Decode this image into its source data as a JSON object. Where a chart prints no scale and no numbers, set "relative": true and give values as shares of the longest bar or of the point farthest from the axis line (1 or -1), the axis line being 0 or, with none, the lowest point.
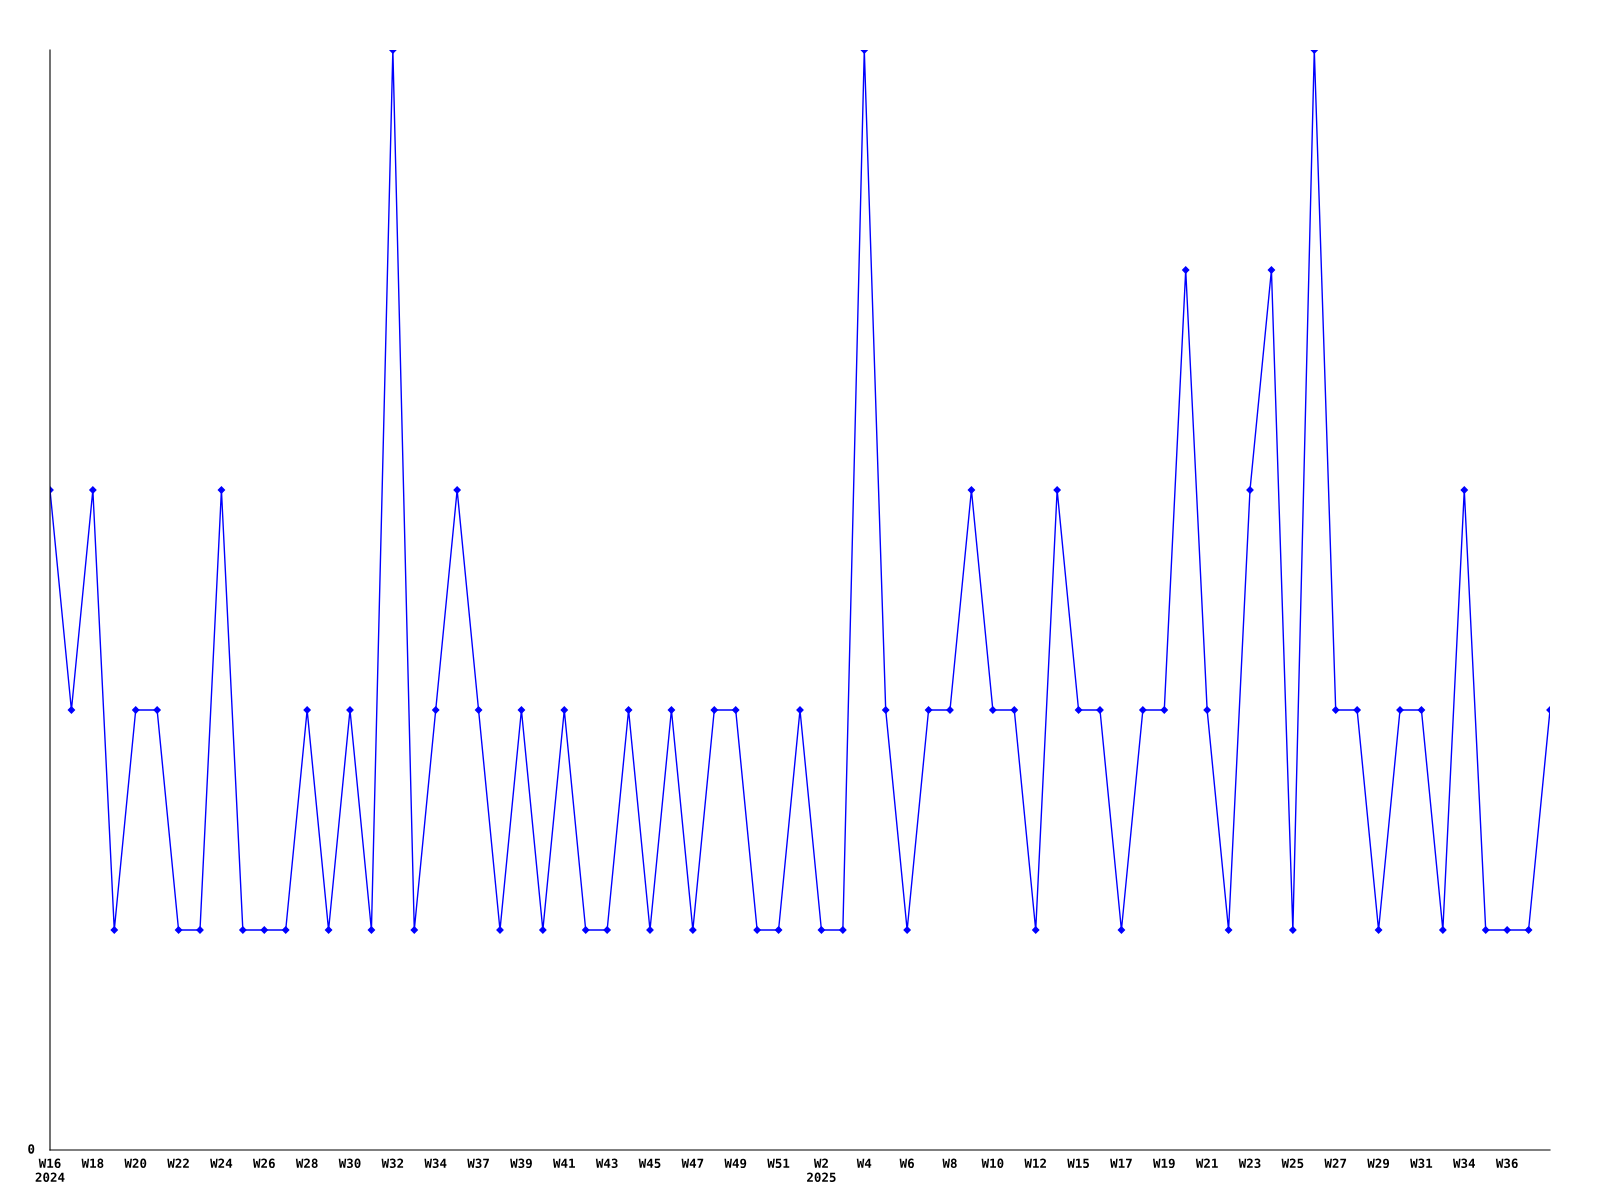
{
  "chart_data": {
    "type": "line",
    "relative": true,
    "marker": "diamond",
    "line_style": "solid",
    "grid": false,
    "legend": false,
    "categories": [
      "W16\n2024",
      null,
      "W18",
      null,
      "W20",
      null,
      "W22",
      null,
      "W24",
      null,
      "W26",
      null,
      "W28",
      null,
      "W30",
      null,
      "W32",
      null,
      "W34",
      null,
      "W37",
      null,
      "W39",
      null,
      "W41",
      null,
      "W43",
      null,
      "W45",
      null,
      "W47",
      null,
      "W49",
      null,
      "W51",
      null,
      "W2\n2025",
      null,
      "W4",
      null,
      "W6",
      null,
      "W8",
      null,
      "W10",
      null,
      "W12",
      null,
      "W15",
      null,
      "W17",
      null,
      "W19",
      null,
      "W21",
      null,
      "W23",
      null,
      "W25",
      null,
      "W27",
      null,
      "W29",
      null,
      "W31",
      null,
      "W34",
      null,
      "W36",
      null,
      null
    ],
    "series": [
      {
        "color": "#0000ff",
        "values": [
          0.6,
          0.4,
          0.6,
          0.2,
          0.4,
          0.4,
          0.2,
          0.2,
          0.6,
          0.2,
          0.2,
          0.2,
          0.4,
          0.2,
          0.4,
          0.2,
          1,
          0.2,
          0.4,
          0.6,
          0.4,
          0.2,
          0.4,
          0.2,
          0.4,
          0.2,
          0.2,
          0.4,
          0.2,
          0.4,
          0.2,
          0.4,
          0.4,
          0.2,
          0.2,
          0.4,
          0.2,
          0.2,
          1,
          0.4,
          0.2,
          0.4,
          0.4,
          0.6,
          0.4,
          0.4,
          0.2,
          0.6,
          0.4,
          0.4,
          0.2,
          0.4,
          0.4,
          0.8,
          0.4,
          0.2,
          0.6,
          0.8,
          0.2,
          1,
          0.4,
          0.4,
          0.2,
          0.4,
          0.4,
          0.2,
          0.6,
          0.2,
          0.2,
          0.2,
          0.4
        ]
      }
    ],
    "annotations": [
      "0"
    ]
  }
}
